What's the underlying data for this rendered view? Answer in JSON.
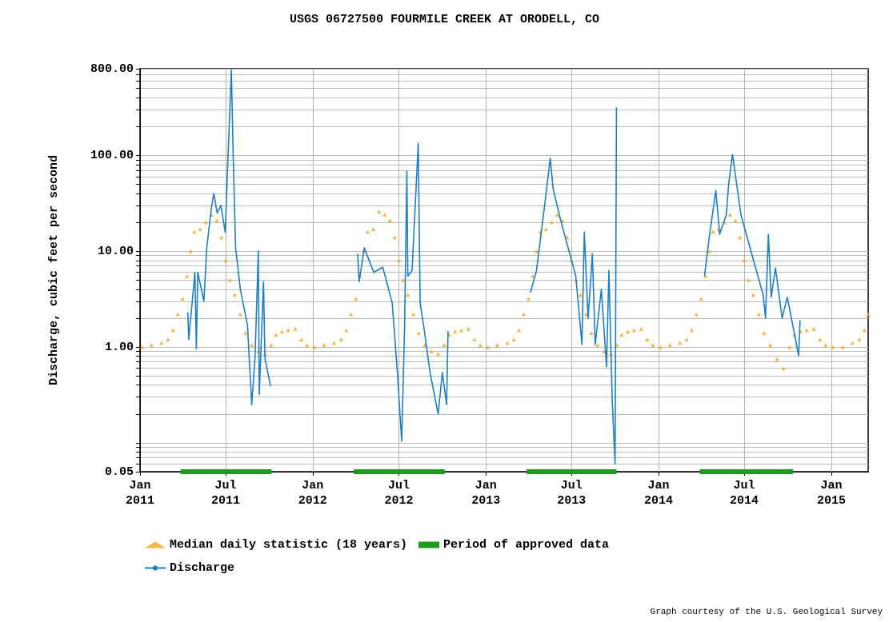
{
  "chart_data": {
    "type": "line",
    "title": "USGS 06727500 FOURMILE CREEK AT ORODELL, CO",
    "ylabel": "Discharge, cubic feet per second",
    "log": "y",
    "grid": true,
    "legend": "bottom",
    "xlim": [
      "2011-01-01",
      "2015-03-20"
    ],
    "xticks": [
      {
        "value": "2011-01-01",
        "label": "Jan 2011"
      },
      {
        "value": "2011-07-01",
        "label": "Jul 2011"
      },
      {
        "value": "2012-01-01",
        "label": "Jan 2012"
      },
      {
        "value": "2012-07-01",
        "label": "Jul 2012"
      },
      {
        "value": "2013-01-01",
        "label": "Jan 2013"
      },
      {
        "value": "2013-07-01",
        "label": "Jul 2013"
      },
      {
        "value": "2014-01-01",
        "label": "Jan 2014"
      },
      {
        "value": "2014-07-01",
        "label": "Jul 2014"
      },
      {
        "value": "2015-01-01",
        "label": "Jan 2015"
      }
    ],
    "ylim": [
      0.05,
      800
    ],
    "yticks": [
      {
        "value": 0.05,
        "label": "0.05"
      },
      {
        "value": 0.06,
        "label": null
      },
      {
        "value": 0.07,
        "label": null
      },
      {
        "value": 0.08,
        "label": null
      },
      {
        "value": 0.09,
        "label": null
      },
      {
        "value": 0.1,
        "label": null
      },
      {
        "value": 0.2,
        "label": null
      },
      {
        "value": 0.3,
        "label": null
      },
      {
        "value": 0.4,
        "label": null
      },
      {
        "value": 0.5,
        "label": null
      },
      {
        "value": 0.6,
        "label": null
      },
      {
        "value": 0.7,
        "label": null
      },
      {
        "value": 0.8,
        "label": null
      },
      {
        "value": 0.9,
        "label": null
      },
      {
        "value": 1,
        "label": "1.00"
      },
      {
        "value": 2,
        "label": null
      },
      {
        "value": 3,
        "label": null
      },
      {
        "value": 4,
        "label": null
      },
      {
        "value": 5,
        "label": null
      },
      {
        "value": 6,
        "label": null
      },
      {
        "value": 7,
        "label": null
      },
      {
        "value": 8,
        "label": null
      },
      {
        "value": 9,
        "label": null
      },
      {
        "value": 10,
        "label": "10.00"
      },
      {
        "value": 20,
        "label": null
      },
      {
        "value": 30,
        "label": null
      },
      {
        "value": 40,
        "label": null
      },
      {
        "value": 50,
        "label": null
      },
      {
        "value": 60,
        "label": null
      },
      {
        "value": 70,
        "label": null
      },
      {
        "value": 80,
        "label": null
      },
      {
        "value": 90,
        "label": null
      },
      {
        "value": 100,
        "label": "100.00"
      },
      {
        "value": 200,
        "label": null
      },
      {
        "value": 300,
        "label": null
      },
      {
        "value": 400,
        "label": null
      },
      {
        "value": 500,
        "label": null
      },
      {
        "value": 600,
        "label": null
      },
      {
        "value": 700,
        "label": null
      },
      {
        "value": 800,
        "label": "800.00"
      }
    ],
    "annotations": [
      "Graph courtesy of the U.S. Geological Survey"
    ],
    "series": [
      {
        "name": "Median daily statistic (18 years)",
        "type": "scatter",
        "marker": "triangle",
        "color": "#f5a21b",
        "x": [
          "2011-01-05",
          "2011-01-25",
          "2011-02-15",
          "2011-03-01",
          "2011-03-12",
          "2011-03-22",
          "2011-04-01",
          "2011-04-10",
          "2011-04-18",
          "2011-04-26",
          "2011-05-08",
          "2011-05-20",
          "2011-06-01",
          "2011-06-12",
          "2011-06-22",
          "2011-07-01",
          "2011-07-10",
          "2011-07-20",
          "2011-08-01",
          "2011-08-12",
          "2011-08-25",
          "2011-09-08",
          "2011-09-22",
          "2011-10-05",
          "2011-10-15",
          "2011-10-28",
          "2011-11-10",
          "2011-11-25",
          "2011-12-08",
          "2011-12-20",
          "2012-01-05",
          "2012-01-25",
          "2012-02-15",
          "2012-03-01",
          "2012-03-12",
          "2012-03-22",
          "2012-04-01",
          "2012-04-10",
          "2012-04-18",
          "2012-04-26",
          "2012-05-08",
          "2012-05-20",
          "2012-06-01",
          "2012-06-12",
          "2012-06-22",
          "2012-07-01",
          "2012-07-10",
          "2012-07-20",
          "2012-08-01",
          "2012-08-12",
          "2012-08-25",
          "2012-09-08",
          "2012-09-22",
          "2012-10-05",
          "2012-10-15",
          "2012-10-28",
          "2012-11-10",
          "2012-11-25",
          "2012-12-08",
          "2012-12-20",
          "2013-01-05",
          "2013-01-25",
          "2013-02-15",
          "2013-03-01",
          "2013-03-12",
          "2013-03-22",
          "2013-04-01",
          "2013-04-10",
          "2013-04-18",
          "2013-04-26",
          "2013-05-08",
          "2013-05-20",
          "2013-06-01",
          "2013-06-12",
          "2013-06-22",
          "2013-07-01",
          "2013-07-10",
          "2013-07-20",
          "2013-08-01",
          "2013-08-12",
          "2013-08-25",
          "2013-09-08",
          "2013-09-22",
          "2013-10-05",
          "2013-10-15",
          "2013-10-28",
          "2013-11-10",
          "2013-11-25",
          "2013-12-08",
          "2013-12-20",
          "2014-01-05",
          "2014-01-25",
          "2014-02-15",
          "2014-03-01",
          "2014-03-12",
          "2014-03-22",
          "2014-04-01",
          "2014-04-10",
          "2014-04-18",
          "2014-04-26",
          "2014-05-08",
          "2014-05-20",
          "2014-06-01",
          "2014-06-12",
          "2014-06-22",
          "2014-07-01",
          "2014-07-10",
          "2014-07-20",
          "2014-08-01",
          "2014-08-12",
          "2014-08-25",
          "2014-09-08",
          "2014-09-22",
          "2014-10-05",
          "2014-10-15",
          "2014-10-28",
          "2014-11-10",
          "2014-11-25",
          "2014-12-08",
          "2014-12-20",
          "2015-01-05",
          "2015-01-25",
          "2015-02-15",
          "2015-03-01",
          "2015-03-12",
          "2015-03-20"
        ],
        "values": [
          1.0,
          1.05,
          1.1,
          1.2,
          1.5,
          2.2,
          3.2,
          5.5,
          10,
          16,
          17,
          20,
          24,
          21,
          14,
          8,
          5,
          3.5,
          2.2,
          1.4,
          1.05,
          0.9,
          0.85,
          1.05,
          1.35,
          1.45,
          1.5,
          1.55,
          1.2,
          1.05,
          1.0,
          1.05,
          1.1,
          1.2,
          1.5,
          2.2,
          3.2,
          5.5,
          10,
          16,
          17,
          26,
          24,
          21,
          14,
          8,
          5,
          3.5,
          2.2,
          1.4,
          1.05,
          0.9,
          0.85,
          1.05,
          1.35,
          1.45,
          1.5,
          1.55,
          1.2,
          1.05,
          1.0,
          1.05,
          1.1,
          1.2,
          1.5,
          2.2,
          3.2,
          5.5,
          10,
          16,
          17,
          20,
          24,
          21,
          14,
          8,
          5,
          3.5,
          2.2,
          1.4,
          1.05,
          0.9,
          0.85,
          1.05,
          1.35,
          1.45,
          1.5,
          1.55,
          1.2,
          1.05,
          1.0,
          1.05,
          1.1,
          1.2,
          1.5,
          2.2,
          3.2,
          5.5,
          10,
          16,
          17,
          20,
          24,
          21,
          14,
          8,
          5,
          3.5,
          2.2,
          1.4,
          1.05,
          0.75,
          0.6,
          1.0,
          1.35,
          1.45,
          1.5,
          1.55,
          1.2,
          1.05,
          1.0,
          1.0,
          1.1,
          1.2,
          1.5,
          2.2
        ]
      },
      {
        "name": "Period of approved data",
        "marker": "none",
        "color": "#1e9a1e",
        "x": [
          "2011-03-28",
          "2011-10-06",
          "2011-10-07",
          "2012-03-28",
          "2012-10-06",
          "2012-10-07",
          "2013-03-28",
          "2013-10-04",
          "2013-10-05",
          "2014-03-29",
          "2014-10-12"
        ],
        "values": [
          0.05,
          0.05,
          null,
          0.05,
          0.05,
          null,
          0.05,
          0.05,
          null,
          0.05,
          0.05
        ]
      },
      {
        "name": "Discharge",
        "marker": "none",
        "color": "#1f7fc1",
        "x": [
          "2011-04-12",
          "2011-04-14",
          "2011-04-27",
          "2011-04-30",
          "2011-05-03",
          "2011-05-16",
          "2011-05-22",
          "2011-06-01",
          "2011-06-06",
          "2011-06-13",
          "2011-06-21",
          "2011-06-30",
          "2011-07-13",
          "2011-07-17",
          "2011-07-22",
          "2011-08-01",
          "2011-08-16",
          "2011-08-25",
          "2011-09-01",
          "2011-09-08",
          "2011-09-10",
          "2011-09-19",
          "2011-09-22",
          "2011-10-04",
          "2011-10-05",
          "2012-04-05",
          "2012-04-08",
          "2012-04-19",
          "2012-05-09",
          "2012-05-28",
          "2012-06-17",
          "2012-06-28",
          "2012-07-07",
          "2012-07-13",
          "2012-07-18",
          "2012-07-20",
          "2012-07-29",
          "2012-08-11",
          "2012-08-15",
          "2012-08-24",
          "2012-09-05",
          "2012-09-22",
          "2012-10-01",
          "2012-10-10",
          "2012-10-13",
          "2012-10-14",
          "2013-04-05",
          "2013-04-18",
          "2013-05-04",
          "2013-05-17",
          "2013-05-23",
          "2013-06-08",
          "2013-07-10",
          "2013-07-23",
          "2013-07-28",
          "2013-08-05",
          "2013-08-14",
          "2013-08-20",
          "2013-09-02",
          "2013-09-13",
          "2013-09-18",
          "2013-09-25",
          "2013-10-01",
          "2013-10-04",
          "2013-10-05",
          "2014-04-08",
          "2014-04-18",
          "2014-05-02",
          "2014-05-10",
          "2014-05-24",
          "2014-05-29",
          "2014-06-06",
          "2014-06-12",
          "2014-06-24",
          "2014-07-22",
          "2014-08-10",
          "2014-08-15",
          "2014-08-21",
          "2014-08-27",
          "2014-09-05",
          "2014-09-19",
          "2014-09-30",
          "2014-10-14",
          "2014-10-24",
          "2014-10-27"
        ],
        "values": [
          2.3,
          1.2,
          6,
          0.96,
          6,
          3.0,
          10.8,
          28.7,
          40,
          25,
          30,
          15.8,
          780,
          94,
          10.8,
          4,
          1.7,
          0.25,
          0.76,
          10,
          0.32,
          4.8,
          0.76,
          0.39,
          null,
          9.4,
          4.8,
          10.8,
          6,
          6.8,
          2.9,
          0.54,
          0.104,
          1.47,
          68,
          5.5,
          6.3,
          133,
          2.9,
          1.47,
          0.54,
          0.2,
          0.54,
          0.25,
          1.47,
          null,
          3.7,
          6.3,
          27,
          93,
          45,
          21,
          5.5,
          1.06,
          15.8,
          2.0,
          9.4,
          1.06,
          4.0,
          0.62,
          6.3,
          0.28,
          0.06,
          316,
          null,
          5.5,
          13.9,
          43,
          15,
          24,
          49,
          102,
          64,
          24,
          7.6,
          3.5,
          2.0,
          15,
          3.3,
          6.7,
          2.0,
          3.3,
          1.47,
          0.81,
          1.9
        ]
      }
    ]
  }
}
